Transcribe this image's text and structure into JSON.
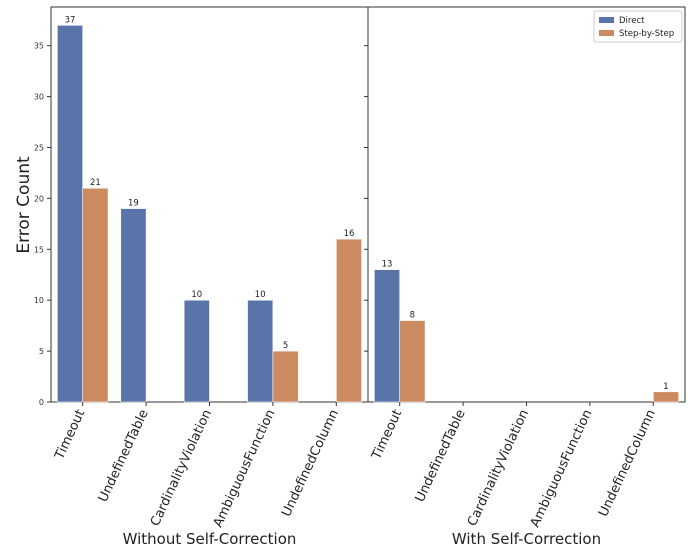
{
  "chart_data": {
    "type": "bar",
    "ylabel": "Error Count",
    "ylim": [
      0,
      38.8
    ],
    "yticks": [
      0,
      5,
      10,
      15,
      20,
      25,
      30,
      35
    ],
    "grid": false,
    "legend_position": "top-right",
    "legend": [
      {
        "name": "Direct",
        "color": "#5874a8"
      },
      {
        "name": "Step-by-Step",
        "color": "#cc8a60"
      }
    ],
    "panels": [
      {
        "xlabel": "Without Self-Correction",
        "categories": [
          "Timeout",
          "UndefinedTable",
          "CardinalityViolation",
          "AmbiguousFunction",
          "UndefinedColumn"
        ],
        "series": [
          {
            "name": "Direct",
            "values": [
              37,
              19,
              10,
              10,
              0
            ],
            "labels": [
              "37",
              "19",
              "10",
              "10",
              ""
            ]
          },
          {
            "name": "Step-by-Step",
            "values": [
              21,
              0,
              0,
              5,
              16
            ],
            "labels": [
              "21",
              "",
              "",
              "5",
              "16"
            ]
          }
        ]
      },
      {
        "xlabel": "With Self-Correction",
        "categories": [
          "Timeout",
          "UndefinedTable",
          "CardinalityViolation",
          "AmbiguousFunction",
          "UndefinedColumn"
        ],
        "series": [
          {
            "name": "Direct",
            "values": [
              13,
              0,
              0,
              0,
              0
            ],
            "labels": [
              "13",
              "",
              "",
              "",
              ""
            ]
          },
          {
            "name": "Step-by-Step",
            "values": [
              8,
              0,
              0,
              0,
              1
            ],
            "labels": [
              "8",
              "",
              "",
              "",
              "1"
            ]
          }
        ]
      }
    ]
  }
}
